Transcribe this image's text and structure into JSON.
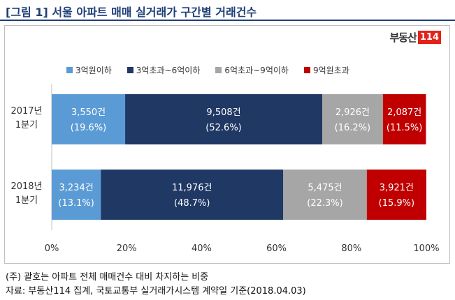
{
  "title": "[그림 1] 서울 아파트 매매 실거래가 구간별 거래건수",
  "logo": {
    "text": "부동산",
    "box": "114"
  },
  "chart_data": {
    "type": "bar",
    "orientation": "horizontal",
    "stacked": "percent",
    "categories": [
      [
        "2017년",
        "1분기"
      ],
      [
        "2018년",
        "1분기"
      ]
    ],
    "series": [
      {
        "name": "3억원이하",
        "color": "#5b9bd5",
        "text_color": "#ffffff",
        "counts": [
          "3,550건",
          "3,234건"
        ],
        "values": [
          19.6,
          13.1
        ],
        "labels": [
          "(19.6%)",
          "(13.1%)"
        ]
      },
      {
        "name": "3억초과~6억이하",
        "color": "#1f3864",
        "text_color": "#ffffff",
        "counts": [
          "9,508건",
          "11,976건"
        ],
        "values": [
          52.6,
          48.7
        ],
        "labels": [
          "(52.6%)",
          "(48.7%)"
        ]
      },
      {
        "name": "6억초과~9억이하",
        "color": "#a6a6a6",
        "text_color": "#ffffff",
        "counts": [
          "2,926건",
          "5,475건"
        ],
        "values": [
          16.2,
          22.3
        ],
        "labels": [
          "(16.2%)",
          "(22.3%)"
        ]
      },
      {
        "name": "9억원초과",
        "color": "#c00000",
        "text_color": "#ffffff",
        "counts": [
          "2,087건",
          "3,921건"
        ],
        "values": [
          11.5,
          15.9
        ],
        "labels": [
          "(11.5%)",
          "(15.9%)"
        ]
      }
    ],
    "x_ticks": [
      "0%",
      "20%",
      "40%",
      "60%",
      "80%",
      "100%"
    ],
    "xlim": [
      0,
      100
    ],
    "legend_position": "top",
    "grid": false
  },
  "footnotes": [
    "(주) 괄호는 아파트 전체 매매건수 대비 차지하는 비중",
    "자료: 부동산114 집계, 국토교통부 실거래가시스템 계약일 기준(2018.04.03)"
  ]
}
